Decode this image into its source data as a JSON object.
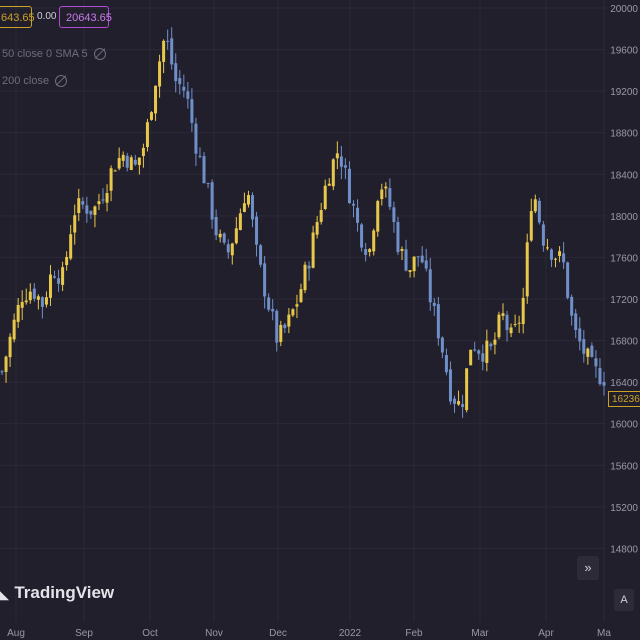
{
  "legend": {
    "last_value_badge": "643.65",
    "change": "0.00",
    "compare_badge": "20643.65",
    "indicators": [
      {
        "label": "50 close 0 SMA 5"
      },
      {
        "label": "200 close"
      }
    ]
  },
  "branding": {
    "logo_text": "TradingView"
  },
  "controls": {
    "scroll_right_icon": "double-chevron-right-icon",
    "auto_scale_label": "A"
  },
  "price_tag": "16236",
  "colors": {
    "background": "#221f2c",
    "candle_up": "#e8c84a",
    "candle_down": "#6f8fc9",
    "grid": "#2c2937",
    "axis_text": "#9b97a8"
  },
  "chart_data": {
    "type": "candlestick",
    "y_ticks": [
      "20000",
      "19600",
      "19200",
      "18800",
      "18400",
      "18000",
      "17600",
      "17200",
      "16800",
      "16400",
      "16000",
      "15600",
      "15200",
      "14800"
    ],
    "x_ticks": [
      "Aug",
      "Sep",
      "Oct",
      "Nov",
      "Dec",
      "2022",
      "Feb",
      "Mar",
      "Apr",
      "Ma"
    ],
    "ylim": [
      14400,
      20000
    ],
    "close_path": [
      16500,
      16900,
      17250,
      17300,
      17150,
      17500,
      17400,
      18050,
      18100,
      18050,
      18250,
      18500,
      18600,
      18450,
      18700,
      19300,
      19750,
      19300,
      19200,
      18700,
      18300,
      17850,
      17600,
      17900,
      18300,
      17600,
      17200,
      16800,
      16950,
      17200,
      17550,
      18000,
      18400,
      18650,
      18250,
      17850,
      17650,
      18350,
      18100,
      17650,
      17500,
      17650,
      17200,
      16800,
      16300,
      16150,
      16800,
      16700,
      16700,
      17050,
      16800,
      17100,
      18300,
      17800,
      17650,
      17550,
      16900,
      16700,
      16500,
      16450
    ]
  }
}
